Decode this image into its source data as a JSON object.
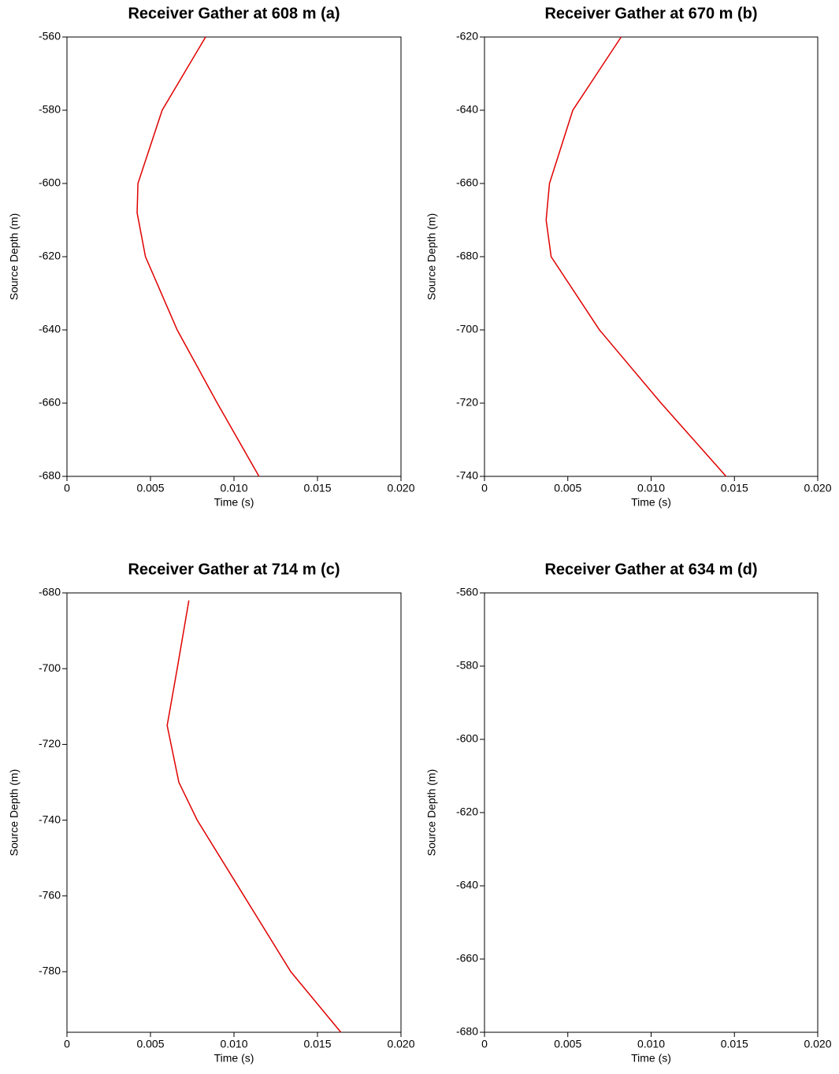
{
  "chart_data": [
    {
      "type": "line",
      "title": "Receiver Gather at 608 m (a)",
      "x_label": "Time (s)",
      "y_label": "Source Depth (m)",
      "xlim": [
        0,
        0.02
      ],
      "ylim": [
        -680,
        -560
      ],
      "xticks": [
        0,
        0.005,
        {
          "value": 0.01,
          "label": "0.010"
        },
        0.015,
        {
          "value": 0.02,
          "label": "0.020"
        }
      ],
      "yticks": [
        -680,
        -660,
        -640,
        -620,
        -600,
        -580,
        -560
      ],
      "series": [
        {
          "color": "#e00000",
          "x": [
            0.0083,
            0.0057,
            0.00425,
            0.0042,
            0.0047,
            0.0066,
            0.009,
            0.0115
          ],
          "values": [
            -560,
            -580,
            -600,
            -608,
            -620,
            -640,
            -660,
            -680
          ]
        }
      ]
    },
    {
      "type": "line",
      "title": "Receiver Gather at 670 m (b)",
      "x_label": "Time (s)",
      "y_label": "Source Depth (m)",
      "xlim": [
        0,
        0.02
      ],
      "ylim": [
        -740,
        -620
      ],
      "xticks": [
        0,
        0.005,
        {
          "value": 0.01,
          "label": "0.010"
        },
        0.015,
        {
          "value": 0.02,
          "label": "0.020"
        }
      ],
      "yticks": [
        -740,
        -720,
        -700,
        -680,
        -660,
        -640,
        -620
      ],
      "series": [
        {
          "color": "#e00000",
          "x": [
            0.0082,
            0.0053,
            0.0039,
            0.0037,
            0.004,
            0.0069,
            0.0106,
            0.0145
          ],
          "values": [
            -620,
            -640,
            -660,
            -670,
            -680,
            -700,
            -720,
            -740
          ]
        }
      ]
    },
    {
      "type": "line",
      "title": "Receiver Gather at 714 m (c)",
      "x_label": "Time (s)",
      "y_label": "Source Depth (m)",
      "xlim": [
        0,
        0.02
      ],
      "ylim": [
        -796,
        -680
      ],
      "xticks": [
        0,
        0.005,
        {
          "value": 0.01,
          "label": "0.010"
        },
        0.015,
        {
          "value": 0.02,
          "label": "0.020"
        }
      ],
      "yticks": [
        -780,
        -760,
        -740,
        -720,
        -700,
        -680
      ],
      "series": [
        {
          "color": "#e00000",
          "x": [
            0.0073,
            0.0066,
            0.006,
            0.0067,
            0.0078,
            0.0106,
            0.0134,
            0.0164
          ],
          "values": [
            -682,
            -700,
            -715,
            -730,
            -740,
            -760,
            -780,
            -796
          ]
        }
      ]
    },
    {
      "type": "line",
      "title": "Receiver Gather at 634 m (d)",
      "x_label": "Time (s)",
      "y_label": "Source Depth (m)",
      "xlim": [
        0,
        0.02
      ],
      "ylim": [
        -680,
        -560
      ],
      "xticks": [
        0,
        0.005,
        {
          "value": 0.01,
          "label": "0.010"
        },
        0.015,
        {
          "value": 0.02,
          "label": "0.020"
        }
      ],
      "yticks": [
        -680,
        -660,
        -640,
        -620,
        -600,
        -580,
        -560
      ]
    }
  ]
}
